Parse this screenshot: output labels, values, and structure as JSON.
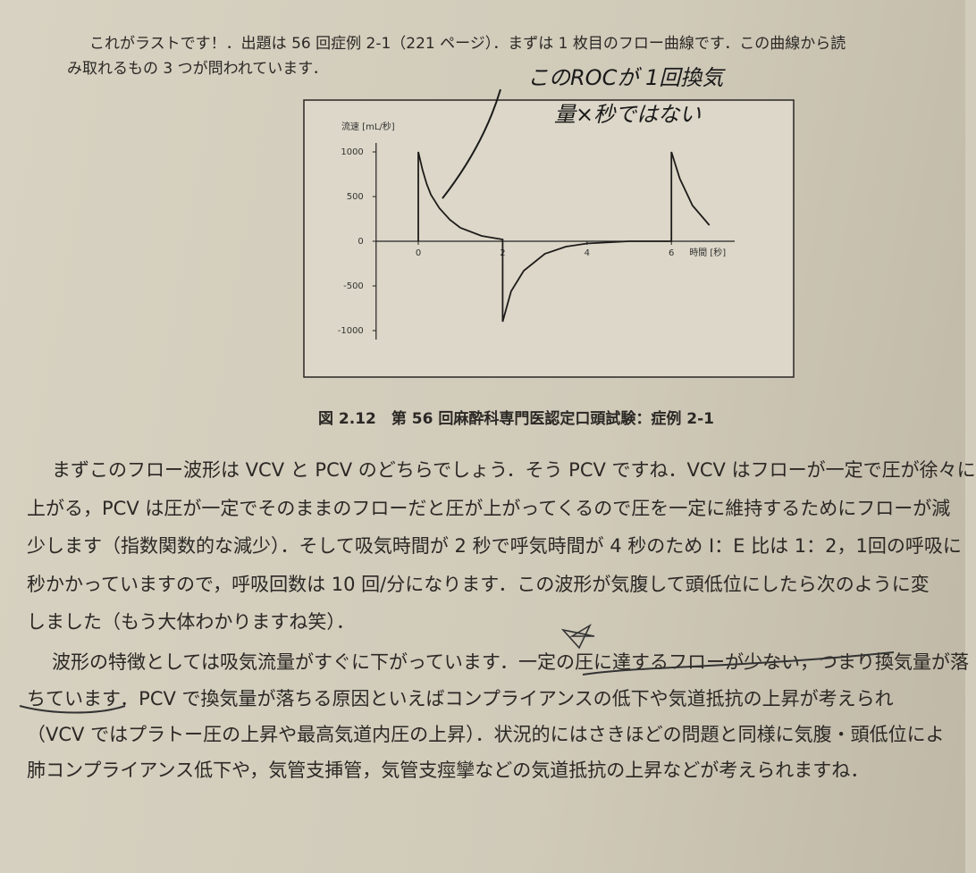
{
  "intro": [
    "これがラストです！．出題は 56 回症例 2-1（221 ページ）．まずは 1 枚目のフロー曲線です．この曲線から読",
    "み取れるもの 3 つが問われています．"
  ],
  "chart_data": {
    "type": "line",
    "ylabel": "流速 [mL/秒]",
    "xlabel": "時間 [秒]",
    "x": [
      0,
      0,
      0.1,
      0.2,
      0.3,
      0.5,
      0.75,
      1.0,
      1.5,
      2.0,
      2.0,
      2.2,
      2.5,
      3.0,
      3.5,
      4.0,
      5.0,
      6.0,
      6.0,
      6.2,
      6.5,
      6.9
    ],
    "series": [
      {
        "color": "#1e1c1a",
        "values": [
          0,
          1000,
          800,
          640,
          520,
          370,
          240,
          150,
          60,
          20,
          -900,
          -560,
          -330,
          -140,
          -60,
          -25,
          0,
          0,
          1000,
          700,
          400,
          180
        ]
      }
    ],
    "xlim": [
      -1,
      7.5
    ],
    "ylim": [
      -1100,
      1100
    ],
    "xticks": [
      0,
      2,
      4,
      6
    ],
    "yticks": [
      1000,
      500,
      0,
      -500,
      -1000
    ]
  },
  "handwritten_note": [
    "このROCが 1回換気",
    "量×秒ではない"
  ],
  "caption": "図 2.12　第 56 回麻酔科専門医認定口頭試験：症例 2-1",
  "paragraphs": [
    [
      "まずこのフロー波形は VCV と PCV のどちらでしょう．そう PCV ですね．VCV はフローが一定で圧が徐々に",
      "上がる，PCV は圧が一定でそのままのフローだと圧が上がってくるので圧を一定に維持するためにフローが減",
      "少します（指数関数的な減少）．そして吸気時間が 2 秒で呼気時間が 4 秒のため I：E 比は 1：2，1回の呼吸に",
      "秒かかっていますので，呼吸回数は 10 回/分になります．この波形が気腹して頭低位にしたら次のように変",
      "しました（もう大体わかりますね笑）．"
    ],
    [
      "波形の特徴としては吸気流量がすぐに下がっています．一定の圧に達するフローが少ない，つまり換気量が落",
      "ちています．PCV で換気量が落ちる原因といえばコンプライアンスの低下や気道抵抗の上昇が考えられ",
      "（VCV ではプラトー圧の上昇や最高気道内圧の上昇）．状況的にはさきほどの問題と同様に気腹・頭低位によ",
      "肺コンプライアンス低下や，気管支挿管，気管支痙攣などの気道抵抗の上昇などが考えられますね．"
    ]
  ]
}
